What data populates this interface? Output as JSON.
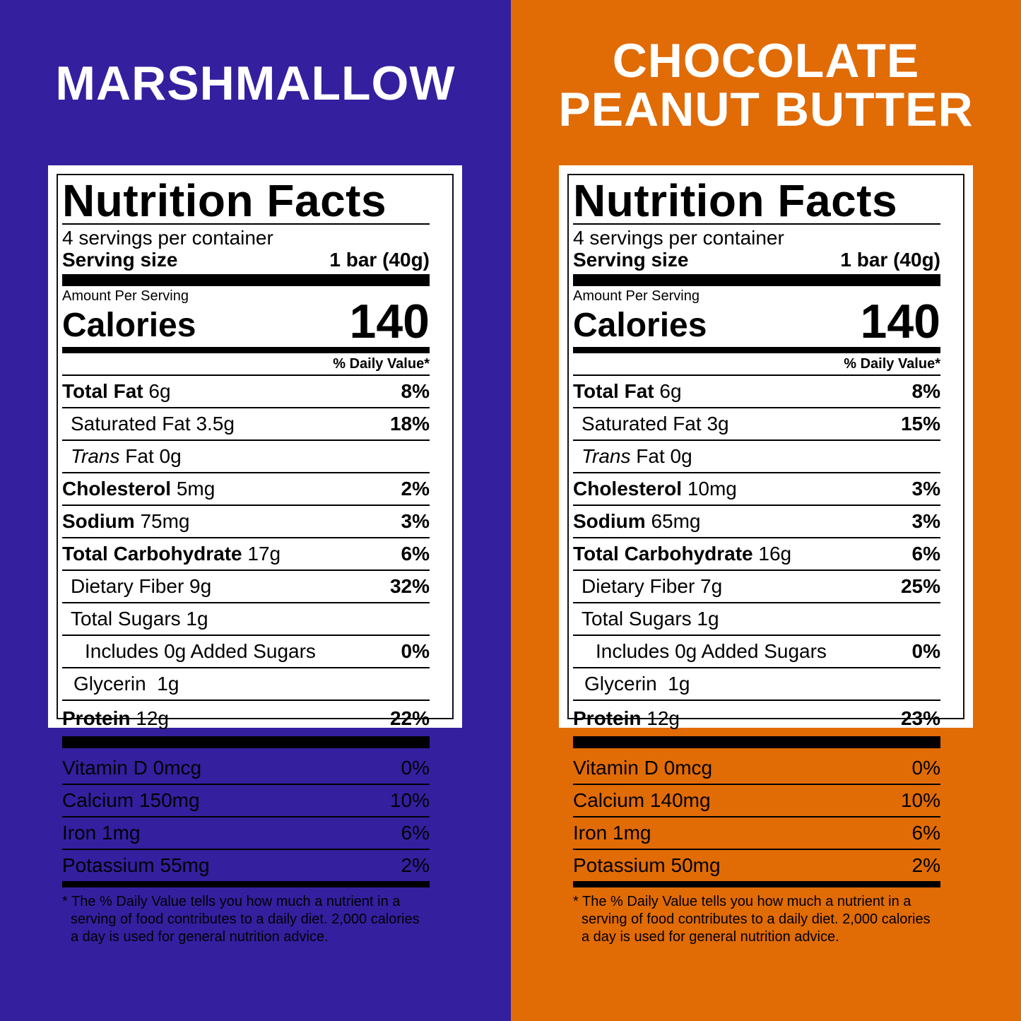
{
  "colors": {
    "left_bg": "#341f9f",
    "right_bg": "#e16b05",
    "card": "#ffffff",
    "ink": "#000000"
  },
  "panels": [
    {
      "flavor_line1": "MARSHMALLOW",
      "flavor_line2": "",
      "title": "Nutrition Facts",
      "servings": "4 servings per container",
      "serving_size_label": "Serving size",
      "serving_size_value": "1 bar (40g)",
      "amount_per_serving": "Amount Per Serving",
      "calories_label": "Calories",
      "calories_value": "140",
      "dv_header": "% Daily Value*",
      "total_fat": {
        "label": "Total Fat",
        "amount": "6g",
        "dv": "8%"
      },
      "sat_fat": {
        "label": "Saturated Fat",
        "amount": "3.5g",
        "dv": "18%"
      },
      "trans_fat": {
        "label_italic": "Trans",
        "label": "Fat",
        "amount": "0g"
      },
      "cholesterol": {
        "label": "Cholesterol",
        "amount": "5mg",
        "dv": "2%"
      },
      "sodium": {
        "label": "Sodium",
        "amount": "75mg",
        "dv": "3%"
      },
      "carb": {
        "label": "Total Carbohydrate",
        "amount": "17g",
        "dv": "6%"
      },
      "fiber": {
        "label": "Dietary Fiber",
        "amount": "9g",
        "dv": "32%"
      },
      "sugars": {
        "label": "Total Sugars",
        "amount": "1g"
      },
      "added_sugars": {
        "label": "Includes 0g Added Sugars",
        "dv": "0%"
      },
      "glycerin": {
        "label": "Glycerin",
        "amount": "1g"
      },
      "protein": {
        "label": "Protein",
        "amount": "12g",
        "dv": "22%"
      },
      "vitamins": [
        {
          "label": "Vitamin D",
          "amount": "0mcg",
          "dv": "0%"
        },
        {
          "label": "Calcium",
          "amount": "150mg",
          "dv": "10%"
        },
        {
          "label": "Iron",
          "amount": "1mg",
          "dv": "6%"
        },
        {
          "label": "Potassium",
          "amount": "55mg",
          "dv": "2%"
        }
      ],
      "footnote": "* The % Daily Value tells you how much a nutrient in a serving of food contributes to a daily diet. 2,000 calories a day is used for general nutrition advice."
    },
    {
      "flavor_line1": "CHOCOLATE",
      "flavor_line2": "PEANUT BUTTER",
      "title": "Nutrition Facts",
      "servings": "4 servings per container",
      "serving_size_label": "Serving size",
      "serving_size_value": "1 bar (40g)",
      "amount_per_serving": "Amount Per Serving",
      "calories_label": "Calories",
      "calories_value": "140",
      "dv_header": "% Daily Value*",
      "total_fat": {
        "label": "Total Fat",
        "amount": "6g",
        "dv": "8%"
      },
      "sat_fat": {
        "label": "Saturated Fat",
        "amount": "3g",
        "dv": "15%"
      },
      "trans_fat": {
        "label_italic": "Trans",
        "label": "Fat",
        "amount": "0g"
      },
      "cholesterol": {
        "label": "Cholesterol",
        "amount": "10mg",
        "dv": "3%"
      },
      "sodium": {
        "label": "Sodium",
        "amount": "65mg",
        "dv": "3%"
      },
      "carb": {
        "label": "Total Carbohydrate",
        "amount": "16g",
        "dv": "6%"
      },
      "fiber": {
        "label": "Dietary Fiber",
        "amount": "7g",
        "dv": "25%"
      },
      "sugars": {
        "label": "Total Sugars",
        "amount": "1g"
      },
      "added_sugars": {
        "label": "Includes 0g Added Sugars",
        "dv": "0%"
      },
      "glycerin": {
        "label": "Glycerin",
        "amount": "1g"
      },
      "protein": {
        "label": "Protein",
        "amount": "12g",
        "dv": "23%"
      },
      "vitamins": [
        {
          "label": "Vitamin D",
          "amount": "0mcg",
          "dv": "0%"
        },
        {
          "label": "Calcium",
          "amount": "140mg",
          "dv": "10%"
        },
        {
          "label": "Iron",
          "amount": "1mg",
          "dv": "6%"
        },
        {
          "label": "Potassium",
          "amount": "50mg",
          "dv": "2%"
        }
      ],
      "footnote": "* The % Daily Value tells you how much a nutrient in a serving of food contributes to a daily diet. 2,000 calories a day is used for general nutrition advice."
    }
  ]
}
